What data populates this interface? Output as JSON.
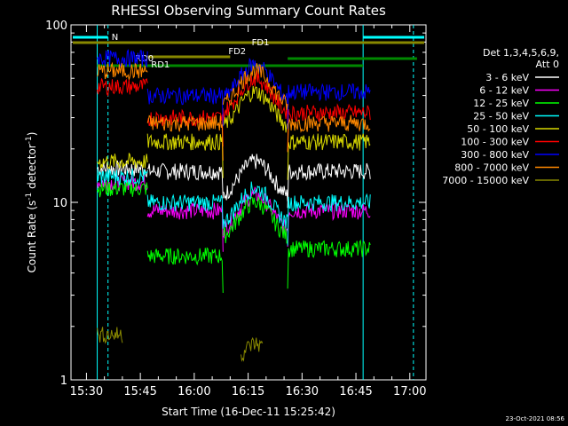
{
  "chart_data": {
    "type": "line",
    "title": "RHESSI Observing Summary Count Rates",
    "xlabel": "Start Time (16-Dec-11 15:25:42)",
    "ylabel": "Count Rate (s⁻¹ detector⁻¹)",
    "ylabel_plain": "Count Rate (s",
    "ylabel_sup1": "-1",
    "ylabel_mid": " detector",
    "ylabel_sup2": "-1",
    "ylabel_end": ")",
    "yscale": "log",
    "ylim": [
      1,
      100
    ],
    "xlim_minutes": [
      -7,
      4
    ],
    "x_ticks": [
      {
        "label": "15:30",
        "min": 30
      },
      {
        "label": "15:45",
        "min": 45
      },
      {
        "label": "16:00",
        "min": 60
      },
      {
        "label": "16:15",
        "min": 75
      },
      {
        "label": "16:30",
        "min": 90
      },
      {
        "label": "16:45",
        "min": 105
      },
      {
        "label": "17:00",
        "min": 120
      }
    ],
    "y_ticks": [
      {
        "label": "1",
        "value": 1
      },
      {
        "label": "10",
        "value": 10
      },
      {
        "label": "100",
        "value": 100
      }
    ],
    "x_range_minutes": [
      25.7,
      124.5
    ],
    "legend_header": [
      "Det 1,3,4,5,6,9,",
      "Att 0"
    ],
    "series": [
      {
        "name": "3 - 6 keV",
        "color": "#ffffff",
        "segments": [
          [
            33,
            47,
            15.5
          ],
          [
            47,
            68,
            15
          ],
          [
            68,
            86,
            17
          ],
          [
            86,
            109,
            15
          ]
        ]
      },
      {
        "name": "6 - 12 keV",
        "color": "#ff00ff",
        "segments": [
          [
            33,
            47,
            13
          ],
          [
            47,
            68,
            9
          ],
          [
            68,
            86,
            11
          ],
          [
            86,
            109,
            9
          ]
        ]
      },
      {
        "name": "12 - 25 keV",
        "color": "#00ff00",
        "segments": [
          [
            33,
            47,
            12
          ],
          [
            47,
            68,
            5
          ],
          [
            68,
            86,
            10
          ],
          [
            86,
            109,
            5.5
          ]
        ]
      },
      {
        "name": "25 - 50 keV",
        "color": "#00ffff",
        "segments": [
          [
            33,
            47,
            14
          ],
          [
            47,
            68,
            10
          ],
          [
            68,
            86,
            12
          ],
          [
            86,
            109,
            10
          ]
        ]
      },
      {
        "name": "50 - 100 keV",
        "color": "#d8d800",
        "segments": [
          [
            33,
            47,
            17
          ],
          [
            47,
            68,
            22
          ],
          [
            68,
            86,
            42
          ],
          [
            86,
            109,
            22
          ]
        ]
      },
      {
        "name": "100 - 300 keV",
        "color": "#ff0000",
        "segments": [
          [
            33,
            47,
            45
          ],
          [
            47,
            68,
            30
          ],
          [
            68,
            86,
            50
          ],
          [
            86,
            109,
            32
          ]
        ]
      },
      {
        "name": "300 - 800 keV",
        "color": "#0000ff",
        "segments": [
          [
            33,
            47,
            65
          ],
          [
            47,
            68,
            40
          ],
          [
            68,
            86,
            60
          ],
          [
            86,
            109,
            42
          ]
        ]
      },
      {
        "name": "800 - 7000 keV",
        "color": "#ff8800",
        "segments": [
          [
            33,
            47,
            55
          ],
          [
            47,
            68,
            28
          ],
          [
            68,
            86,
            55
          ],
          [
            86,
            109,
            28
          ]
        ]
      },
      {
        "name": "7000 - 15000 keV",
        "color": "#888800",
        "segments": [
          [
            33,
            40,
            1.8
          ],
          [
            73,
            79,
            1.6
          ]
        ]
      }
    ],
    "annotations": {
      "saa_label": "N",
      "fd1_label": "FD1",
      "fd2_label": "FD2",
      "rd0_label": "RD0",
      "rd1_label": "RD1"
    },
    "timestamp": "23-Oct-2021 08:56",
    "colors": {
      "axes": "#ffffff",
      "saa": "#00ffff",
      "fd": "#888800",
      "rd": "#008800",
      "background": "#000000"
    }
  }
}
